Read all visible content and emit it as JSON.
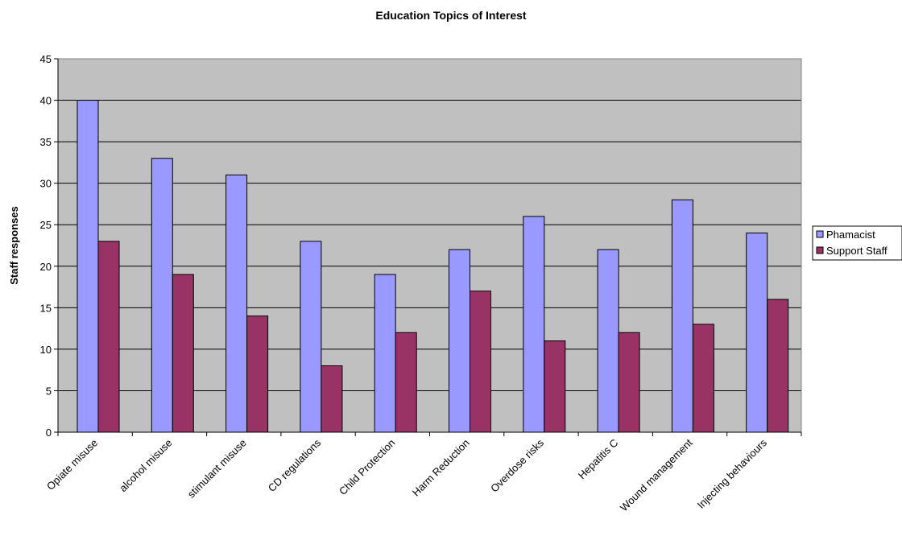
{
  "chart_data": {
    "type": "bar",
    "title": "Education Topics of Interest",
    "xlabel": "",
    "ylabel": "Staff responses",
    "ylim": [
      0,
      45
    ],
    "yticks": [
      0,
      5,
      10,
      15,
      20,
      25,
      30,
      35,
      40,
      45
    ],
    "grid": true,
    "legend_position": "right",
    "plot_background": "#c0c0c0",
    "categories": [
      "Opiate misuse",
      "alcohol misuse",
      "stimulant misuse",
      "CD regulations",
      "Child Protection",
      "Harm Reduction",
      "Overdose risks",
      "Hepatitis C",
      "Wound management",
      "Injecting behaviours"
    ],
    "series": [
      {
        "name": "Phamacist",
        "color": "#9999ff",
        "values": [
          40,
          33,
          31,
          23,
          19,
          22,
          26,
          22,
          28,
          24
        ]
      },
      {
        "name": "Support Staff",
        "color": "#993366",
        "values": [
          23,
          19,
          14,
          8,
          12,
          17,
          11,
          12,
          13,
          16
        ]
      }
    ]
  }
}
